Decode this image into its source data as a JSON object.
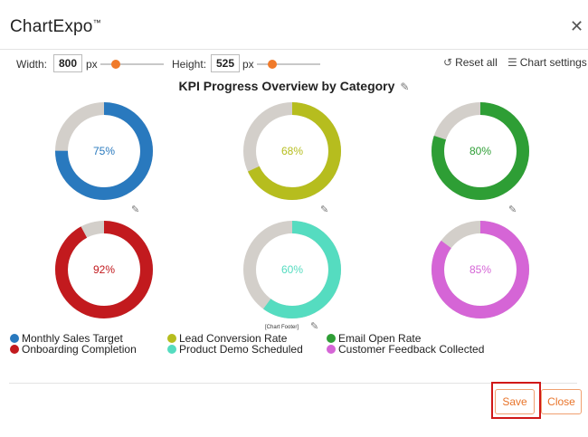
{
  "app": {
    "title": "ChartExpo",
    "trademark": "™"
  },
  "toolbar": {
    "width_label": "Width:",
    "width_value": "800",
    "width_unit": "px",
    "height_label": "Height:",
    "height_value": "525",
    "height_unit": "px",
    "reset_label": "Reset all",
    "settings_label": "Chart settings"
  },
  "footer_label": "[Chart Footer]",
  "buttons": {
    "save": "Save",
    "close": "Close"
  },
  "colors": {
    "remainder": "#d3cfca",
    "accent": "#f07a2a",
    "highlight": "#d01818"
  },
  "chart_data": {
    "type": "donut",
    "title": "KPI Progress Overview by Category",
    "series": [
      {
        "name": "Monthly Sales Target",
        "value": 75,
        "label": "75%",
        "color": "#2979be"
      },
      {
        "name": "Lead Conversion Rate",
        "value": 68,
        "label": "68%",
        "color": "#b6bd1e"
      },
      {
        "name": "Email Open Rate",
        "value": 80,
        "label": "80%",
        "color": "#2e9e35"
      },
      {
        "name": "Onboarding Completion",
        "value": 92,
        "label": "92%",
        "color": "#c21a1e"
      },
      {
        "name": "Product Demo Scheduled",
        "value": 60,
        "label": "60%",
        "color": "#55dcc0"
      },
      {
        "name": "Customer Feedback Collected",
        "value": 85,
        "label": "85%",
        "color": "#d565d6"
      }
    ],
    "legend_position": "bottom-left"
  }
}
